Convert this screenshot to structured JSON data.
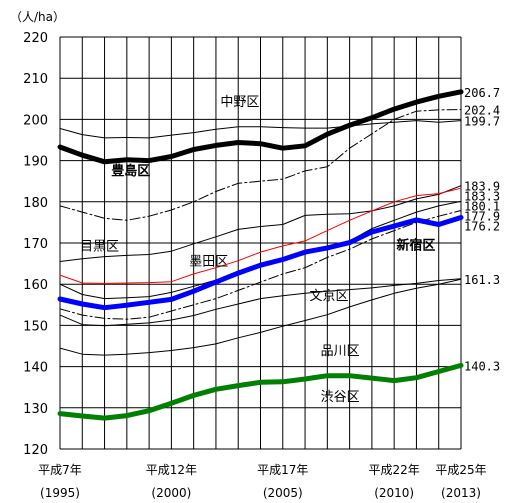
{
  "chart_data": {
    "type": "line",
    "unit_label": "（人/ha）",
    "ylim": [
      120,
      220
    ],
    "yticks": [
      120,
      130,
      140,
      150,
      160,
      170,
      180,
      190,
      200,
      210,
      220
    ],
    "x": [
      1995,
      1996,
      1997,
      1998,
      1999,
      2000,
      2001,
      2002,
      2003,
      2004,
      2005,
      2006,
      2007,
      2008,
      2009,
      2010,
      2011,
      2012,
      2013
    ],
    "xtick_labels": [
      {
        "year": 1995,
        "label": "平成7年",
        "sub": "(1995)"
      },
      {
        "year": 2000,
        "label": "平成12年",
        "sub": "(2000)"
      },
      {
        "year": 2005,
        "label": "平成17年",
        "sub": "(2005)"
      },
      {
        "year": 2010,
        "label": "平成22年",
        "sub": "(2010)"
      },
      {
        "year": 2013,
        "label": "平成25年",
        "sub": "(2013)"
      }
    ],
    "grid": true,
    "series": [
      {
        "name": "豊島区",
        "color": "#000000",
        "width": 5,
        "dash": "",
        "label_year": 1997.3,
        "label_value": 186.5,
        "label_color": "#000000",
        "label_bold": true,
        "end_label": "206.7",
        "values": [
          193.3,
          191.3,
          189.7,
          190.2,
          190.0,
          191.0,
          192.7,
          193.7,
          194.4,
          194.1,
          193.0,
          193.6,
          196.4,
          198.6,
          200.4,
          202.5,
          204.2,
          205.6,
          206.7
        ]
      },
      {
        "name": "中野区",
        "color": "#000000",
        "width": 1,
        "dash": "",
        "label_year": 2002.2,
        "label_value": 203.3,
        "label_color": "#000000",
        "label_bold": false,
        "end_label": "199.7",
        "values": [
          197.8,
          196.3,
          195.5,
          195.6,
          195.5,
          196.2,
          196.8,
          197.6,
          198.2,
          198.2,
          198.0,
          197.9,
          197.9,
          198.4,
          198.9,
          199.3,
          199.7,
          199.3,
          199.7
        ]
      },
      {
        "name": "",
        "color": "#000000",
        "width": 1,
        "dash": "10,3,2,3",
        "label_year": null,
        "label_value": null,
        "label_color": "#000000",
        "label_bold": false,
        "end_label": "202.4",
        "values": [
          179.0,
          177.5,
          176.0,
          175.5,
          176.5,
          178.0,
          180.0,
          182.5,
          184.5,
          185.0,
          185.5,
          187.5,
          188.5,
          193.0,
          196.5,
          200.0,
          202.0,
          202.3,
          202.4
        ]
      },
      {
        "name": "目黒区",
        "color": "#000000",
        "width": 1,
        "dash": "",
        "label_year": 1995.9,
        "label_value": 168.2,
        "label_color": "#000000",
        "label_bold": false,
        "end_label": "183.9",
        "values": [
          165.5,
          166.2,
          166.7,
          167.0,
          167.2,
          168.0,
          169.8,
          171.5,
          173.3,
          174.0,
          174.5,
          176.7,
          177.0,
          177.1,
          177.8,
          179.0,
          180.7,
          181.8,
          183.9
        ]
      },
      {
        "name": "墨田区",
        "color": "#ff0000",
        "width": 1,
        "dash": "",
        "label_year": 2000.8,
        "label_value": 164.5,
        "label_color": "#ff0000",
        "label_bold": false,
        "end_label": "183.3",
        "values": [
          162.2,
          160.3,
          160.2,
          160.3,
          160.4,
          160.6,
          162.5,
          164.0,
          165.7,
          167.8,
          169.3,
          170.5,
          173.0,
          175.5,
          177.8,
          180.0,
          181.5,
          182.0,
          183.3
        ]
      },
      {
        "name": "",
        "color": "#000000",
        "width": 1,
        "dash": "",
        "label_year": null,
        "label_value": null,
        "label_color": "#000000",
        "label_bold": false,
        "end_label": "180.1",
        "values": [
          160.0,
          157.5,
          156.5,
          156.7,
          157.0,
          158.0,
          159.5,
          161.0,
          162.5,
          164.5,
          166.0,
          167.5,
          169.0,
          170.5,
          173.5,
          175.5,
          177.5,
          179.0,
          180.1
        ]
      },
      {
        "name": "",
        "color": "#000000",
        "width": 1,
        "dash": "10,3,2,3",
        "label_year": null,
        "label_value": null,
        "label_color": "#000000",
        "label_bold": false,
        "end_label": "177.9",
        "values": [
          154.0,
          152.5,
          151.7,
          151.5,
          152.0,
          153.5,
          155.0,
          156.5,
          158.5,
          160.5,
          162.5,
          164.0,
          166.5,
          168.5,
          171.0,
          173.0,
          175.0,
          176.5,
          177.9
        ]
      },
      {
        "name": "新宿区",
        "color": "#0000ff",
        "width": 5,
        "dash": "",
        "label_year": 2010.1,
        "label_value": 168.4,
        "label_color": "#0000ff",
        "label_bold": true,
        "end_label": "176.2",
        "values": [
          156.4,
          155.2,
          154.3,
          154.9,
          155.6,
          156.3,
          158.3,
          160.5,
          162.7,
          164.6,
          166.0,
          167.8,
          168.8,
          170.1,
          172.7,
          174.1,
          175.6,
          174.5,
          176.2
        ]
      },
      {
        "name": "文京区",
        "color": "#000000",
        "width": 1,
        "dash": "",
        "label_year": 2006.2,
        "label_value": 156.2,
        "label_color": "#000000",
        "label_bold": false,
        "end_label": "161.3",
        "values": [
          152.5,
          150.2,
          149.9,
          150.3,
          150.6,
          151.3,
          152.4,
          153.9,
          155.2,
          156.5,
          157.2,
          157.8,
          158.3,
          158.7,
          159.1,
          159.7,
          160.2,
          160.9,
          161.3
        ]
      },
      {
        "name": "品川区",
        "color": "#000000",
        "width": 1,
        "dash": "",
        "label_year": 2006.7,
        "label_value": 142.8,
        "label_color": "#000000",
        "label_bold": false,
        "end_label": "",
        "values": [
          144.5,
          143.0,
          142.8,
          143.0,
          143.4,
          143.9,
          144.6,
          145.5,
          147.0,
          148.3,
          149.8,
          151.2,
          152.6,
          154.5,
          156.2,
          157.8,
          159.0,
          160.0,
          161.2
        ]
      },
      {
        "name": "渋谷区",
        "color": "#008000",
        "width": 5,
        "dash": "",
        "label_year": 2006.7,
        "label_value": 131.6,
        "label_color": "#000000",
        "label_bold": false,
        "end_label": "140.3",
        "values": [
          128.6,
          128.0,
          127.5,
          128.1,
          129.3,
          131.1,
          133.0,
          134.5,
          135.4,
          136.2,
          136.3,
          137.0,
          137.8,
          137.8,
          137.2,
          136.6,
          137.3,
          138.8,
          140.3
        ]
      }
    ]
  }
}
